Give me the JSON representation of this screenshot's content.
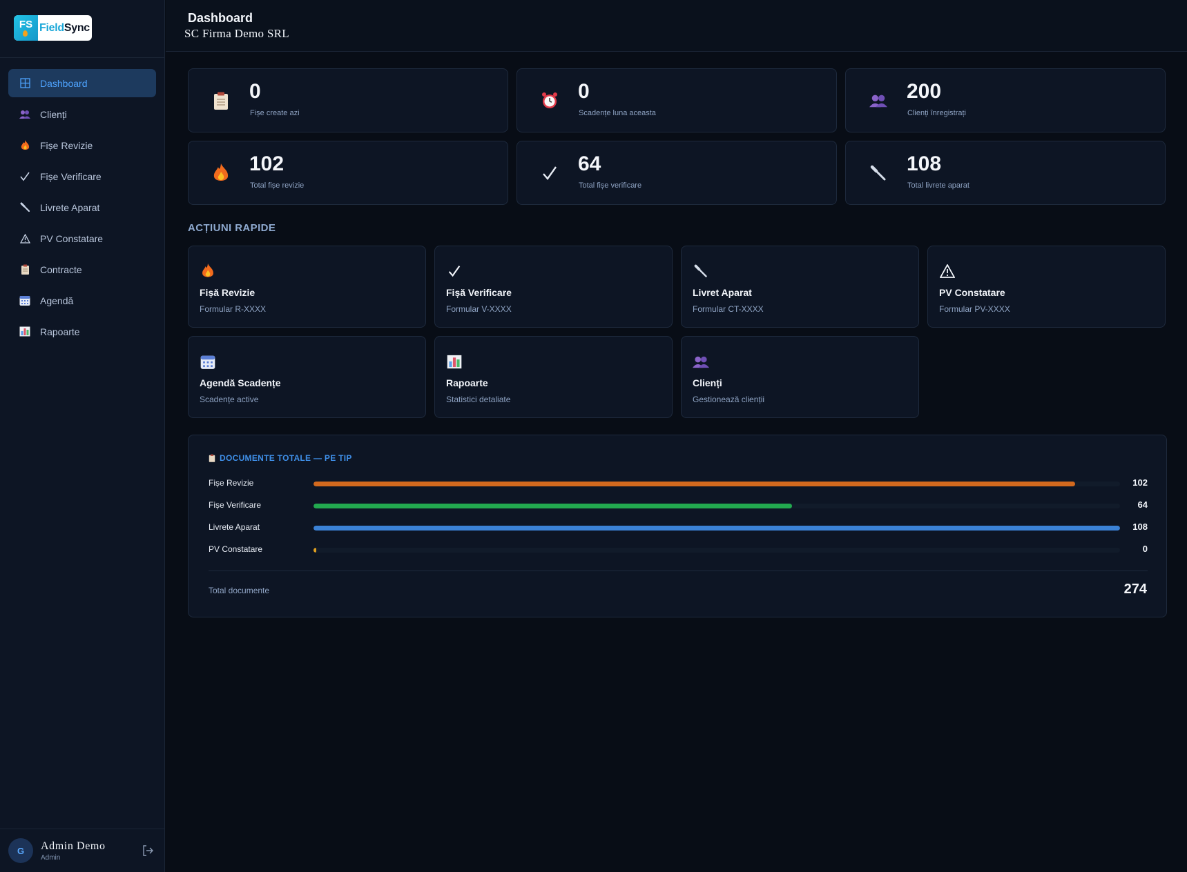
{
  "app": {
    "logo_badge": "FS",
    "logo_name_part1": "Field",
    "logo_name_part2": "Sync"
  },
  "sidebar": {
    "items": [
      {
        "label": "Dashboard",
        "icon": "grid-icon",
        "active": true
      },
      {
        "label": "Clienți",
        "icon": "users-icon"
      },
      {
        "label": "Fișe Revizie",
        "icon": "flame-icon"
      },
      {
        "label": "Fișe Verificare",
        "icon": "check-icon"
      },
      {
        "label": "Livrete Aparat",
        "icon": "wrench-icon"
      },
      {
        "label": "PV Constatare",
        "icon": "warning-icon"
      },
      {
        "label": "Contracte",
        "icon": "clipboard-icon"
      },
      {
        "label": "Agendă",
        "icon": "calendar-icon"
      },
      {
        "label": "Rapoarte",
        "icon": "bar-chart-icon"
      }
    ],
    "user": {
      "initial": "G",
      "name": "Admin Demo",
      "role": "Admin"
    }
  },
  "header": {
    "title": "Dashboard",
    "company": "SC Firma Demo SRL"
  },
  "stats": [
    {
      "value": "0",
      "label": "Fișe create azi",
      "icon": "clipboard-icon"
    },
    {
      "value": "0",
      "label": "Scadențe luna aceasta",
      "icon": "alarm-clock-icon"
    },
    {
      "value": "200",
      "label": "Clienți înregistrați",
      "icon": "users-icon"
    },
    {
      "value": "102",
      "label": "Total fișe revizie",
      "icon": "flame-icon"
    },
    {
      "value": "64",
      "label": "Total fișe verificare",
      "icon": "check-icon"
    },
    {
      "value": "108",
      "label": "Total livrete aparat",
      "icon": "wrench-icon"
    }
  ],
  "quick_actions": {
    "title": "ACȚIUNI RAPIDE",
    "items": [
      {
        "title": "Fișă Revizie",
        "subtitle": "Formular R-XXXX",
        "icon": "flame-icon"
      },
      {
        "title": "Fișă Verificare",
        "subtitle": "Formular V-XXXX",
        "icon": "check-icon"
      },
      {
        "title": "Livret Aparat",
        "subtitle": "Formular CT-XXXX",
        "icon": "wrench-icon"
      },
      {
        "title": "PV Constatare",
        "subtitle": "Formular PV-XXXX",
        "icon": "warning-icon"
      },
      {
        "title": "Agendă Scadențe",
        "subtitle": "Scadențe active",
        "icon": "calendar-icon"
      },
      {
        "title": "Rapoarte",
        "subtitle": "Statistici detaliate",
        "icon": "bar-chart-icon"
      },
      {
        "title": "Clienți",
        "subtitle": "Gestionează clienții",
        "icon": "users-icon"
      }
    ]
  },
  "documents": {
    "title": "DOCUMENTE TOTALE — PE TIP",
    "rows": [
      {
        "label": "Fișe Revizie",
        "value": "102",
        "fraction": 0.944,
        "color": "#d2691e"
      },
      {
        "label": "Fișe Verificare",
        "value": "64",
        "fraction": 0.593,
        "color": "#22a94f"
      },
      {
        "label": "Livrete Aparat",
        "value": "108",
        "fraction": 1.0,
        "color": "#3b82d6"
      },
      {
        "label": "PV Constatare",
        "value": "0",
        "fraction": 0.003,
        "color": "#e0a020"
      }
    ],
    "total_label": "Total documente",
    "total_value": "274"
  }
}
